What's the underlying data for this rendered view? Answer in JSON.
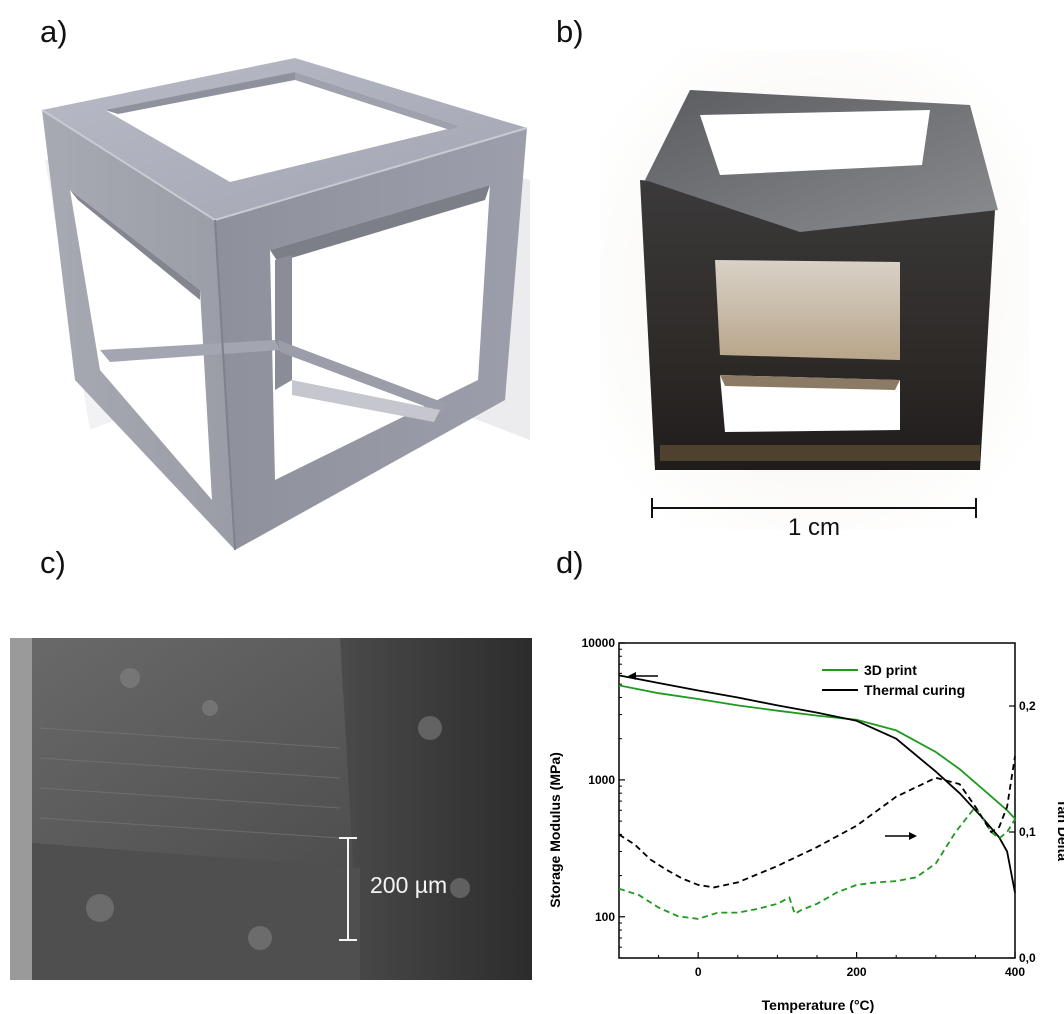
{
  "panels": {
    "a": {
      "label": "a)"
    },
    "b": {
      "label": "b)",
      "scale_label": "1 cm"
    },
    "c": {
      "label": "c)",
      "scale_label": "200 µm"
    },
    "d": {
      "label": "d)"
    }
  },
  "colors": {
    "print": "#1e9a1e",
    "thermal": "#000000",
    "cube_face_light": "#a9acb8",
    "cube_face_dark": "#8d8f9a"
  },
  "chart_data": {
    "type": "line",
    "xlabel": "Temperature (°C)",
    "ylabel": "Storage Modulus (MPa)",
    "y2label": "Tan Delta",
    "xlim": [
      -100,
      400
    ],
    "ylim": [
      50,
      10000
    ],
    "yscale": "log",
    "y2lim": [
      0.0,
      0.25
    ],
    "xticks": [
      "0",
      "200",
      "400"
    ],
    "xtick_values": [
      0,
      200,
      400
    ],
    "yticks": [
      "100",
      "1000",
      "10000"
    ],
    "ytick_values": [
      100,
      1000,
      10000
    ],
    "y2ticks": [
      "0,0",
      "0,1",
      "0,2"
    ],
    "y2tick_values": [
      0.0,
      0.1,
      0.2
    ],
    "legend_position": "top-right",
    "series": [
      {
        "name": "3D print",
        "axis": "left",
        "style": "solid",
        "color": "#1e9a1e",
        "x": [
          -100,
          -50,
          0,
          50,
          100,
          150,
          200,
          250,
          300,
          330,
          360,
          390,
          400
        ],
        "y": [
          4900,
          4300,
          3900,
          3500,
          3200,
          2950,
          2750,
          2300,
          1600,
          1200,
          850,
          600,
          520
        ]
      },
      {
        "name": "Thermal curing",
        "axis": "left",
        "style": "solid",
        "color": "#000000",
        "x": [
          -100,
          -50,
          0,
          50,
          100,
          150,
          200,
          250,
          300,
          330,
          360,
          380,
          390,
          400
        ],
        "y": [
          5800,
          5100,
          4500,
          4000,
          3500,
          3100,
          2700,
          2000,
          1150,
          800,
          520,
          380,
          300,
          150
        ]
      },
      {
        "name": "",
        "axis": "right",
        "style": "dashed",
        "color": "#1e9a1e",
        "x": [
          -100,
          -75,
          -50,
          -25,
          0,
          25,
          50,
          75,
          100,
          115,
          122,
          130,
          150,
          175,
          200,
          225,
          250,
          275,
          300,
          325,
          350,
          370,
          380,
          390,
          400
        ],
        "y": [
          0.055,
          0.05,
          0.04,
          0.033,
          0.031,
          0.036,
          0.036,
          0.039,
          0.043,
          0.048,
          0.035,
          0.038,
          0.043,
          0.052,
          0.058,
          0.06,
          0.061,
          0.064,
          0.075,
          0.1,
          0.12,
          0.1,
          0.095,
          0.1,
          0.11
        ]
      },
      {
        "name": "",
        "axis": "right",
        "style": "dashed",
        "color": "#000000",
        "x": [
          -100,
          -80,
          -60,
          -40,
          -20,
          0,
          20,
          50,
          100,
          150,
          200,
          250,
          300,
          330,
          350,
          370,
          380,
          390,
          395,
          400
        ],
        "y": [
          0.098,
          0.09,
          0.078,
          0.07,
          0.063,
          0.058,
          0.056,
          0.06,
          0.073,
          0.088,
          0.105,
          0.128,
          0.143,
          0.138,
          0.12,
          0.1,
          0.104,
          0.12,
          0.14,
          0.16
        ]
      }
    ],
    "arrows": [
      {
        "points_to": "left",
        "series": "Storage Modulus"
      },
      {
        "points_to": "right",
        "series": "Tan Delta"
      }
    ]
  }
}
